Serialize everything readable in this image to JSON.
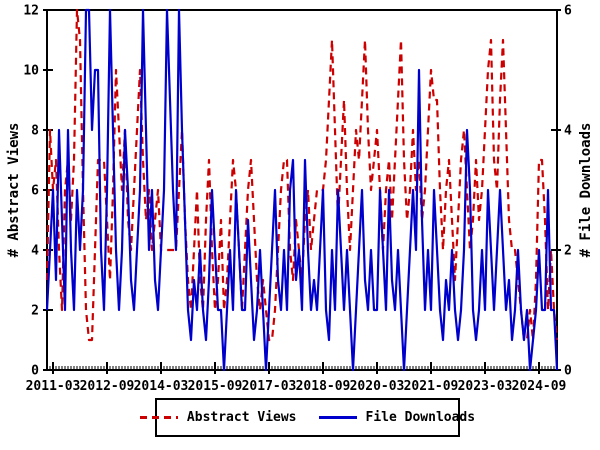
{
  "chart_data": {
    "type": "line",
    "title": "",
    "x_axis": {
      "start": "2011-01",
      "end": "2025-03",
      "frequency": "monthly",
      "tick_labels": [
        "2011-03",
        "2012-09",
        "2014-03",
        "2015-09",
        "2017-03",
        "2018-09",
        "2020-03",
        "2021-09",
        "2023-03",
        "2024-09"
      ],
      "tick_month_indices": [
        2,
        20,
        38,
        56,
        74,
        92,
        110,
        128,
        146,
        164
      ]
    },
    "y_left": {
      "label": "# Abstract Views",
      "ticks": [
        0,
        2,
        4,
        6,
        8,
        10,
        12
      ],
      "range": [
        0,
        12
      ]
    },
    "y_right": {
      "label": "# File Downloads",
      "ticks": [
        0,
        2,
        4,
        6
      ],
      "range": [
        0,
        6
      ]
    },
    "grid": "off",
    "legend_position": "bottom-center",
    "series": [
      {
        "name": "Abstract Views",
        "axis": "left",
        "color": "#cc0000",
        "style": "dashed",
        "values": [
          3,
          8,
          6,
          7,
          4,
          2,
          6,
          7,
          5,
          7,
          12,
          11,
          6,
          2,
          1,
          1,
          4,
          7,
          7,
          7,
          5,
          3,
          6,
          10,
          8,
          6,
          8,
          5,
          4,
          6,
          8,
          10,
          7,
          5,
          6,
          4,
          5,
          6,
          4,
          4,
          4,
          4,
          4,
          4,
          6,
          8,
          5,
          3,
          2,
          4,
          6,
          3,
          2,
          5,
          7,
          4,
          2,
          3,
          5,
          2,
          3,
          5,
          7,
          6,
          4,
          2,
          4,
          6,
          7,
          5,
          3,
          2,
          3,
          2,
          1,
          1,
          2,
          4,
          6,
          7,
          7,
          4,
          3,
          5,
          4,
          3,
          5,
          6,
          4,
          5,
          6,
          6,
          6,
          7,
          9,
          11,
          8,
          5,
          7,
          9,
          6,
          4,
          6,
          8,
          7,
          9,
          11,
          8,
          6,
          7,
          8,
          6,
          4,
          6,
          7,
          5,
          7,
          9,
          11,
          7,
          5,
          6,
          8,
          6,
          7,
          5,
          6,
          8,
          10,
          9,
          9,
          6,
          4,
          6,
          7,
          5,
          3,
          5,
          7,
          8,
          6,
          4,
          5,
          7,
          5,
          6,
          8,
          10,
          11,
          7,
          6,
          9,
          11,
          8,
          5,
          4,
          4,
          3,
          2,
          1,
          1,
          2,
          1,
          3,
          7,
          7,
          5,
          2,
          4,
          2,
          1
        ]
      },
      {
        "name": "File Downloads",
        "axis": "right",
        "color": "#0000cc",
        "style": "solid",
        "values": [
          1,
          2,
          3,
          1.5,
          4,
          2.5,
          1,
          4,
          2,
          1,
          3,
          2,
          3,
          6,
          6,
          4,
          5,
          5,
          2,
          1,
          3,
          6,
          4,
          2,
          1,
          2,
          4,
          3,
          1.5,
          1,
          2,
          3,
          6,
          4,
          2,
          3,
          1.5,
          1,
          2,
          3,
          6,
          4.5,
          3,
          2,
          6,
          4,
          2.5,
          1,
          0.5,
          1.5,
          1,
          2,
          1,
          0.5,
          1.5,
          3,
          2,
          1,
          1,
          0,
          1,
          2,
          1,
          3,
          2,
          1,
          1,
          2.5,
          1.5,
          0.5,
          1,
          2,
          1,
          0,
          1,
          2,
          3,
          1.5,
          1,
          2,
          1,
          3,
          3.5,
          1.5,
          2,
          1,
          3.5,
          2,
          1,
          1.5,
          1,
          2,
          3,
          1,
          0.5,
          2,
          1,
          3,
          2,
          1,
          2,
          1,
          0,
          1,
          2,
          3,
          1.5,
          1,
          2,
          1,
          1,
          3,
          2,
          1,
          3,
          1.5,
          1,
          2,
          1,
          0,
          1,
          2,
          3,
          2,
          5,
          2.5,
          1,
          2,
          1,
          3,
          2,
          1,
          0.5,
          1.5,
          1,
          2,
          1,
          0.5,
          1,
          2,
          4,
          3,
          1,
          0.5,
          1,
          2,
          1,
          3,
          2,
          1,
          2,
          3,
          2,
          1,
          1.5,
          0.5,
          1,
          2,
          1,
          0.5,
          1,
          0,
          0.5,
          1,
          2,
          1,
          1,
          3,
          1,
          1,
          0
        ]
      }
    ],
    "frame_color": "#000000"
  }
}
